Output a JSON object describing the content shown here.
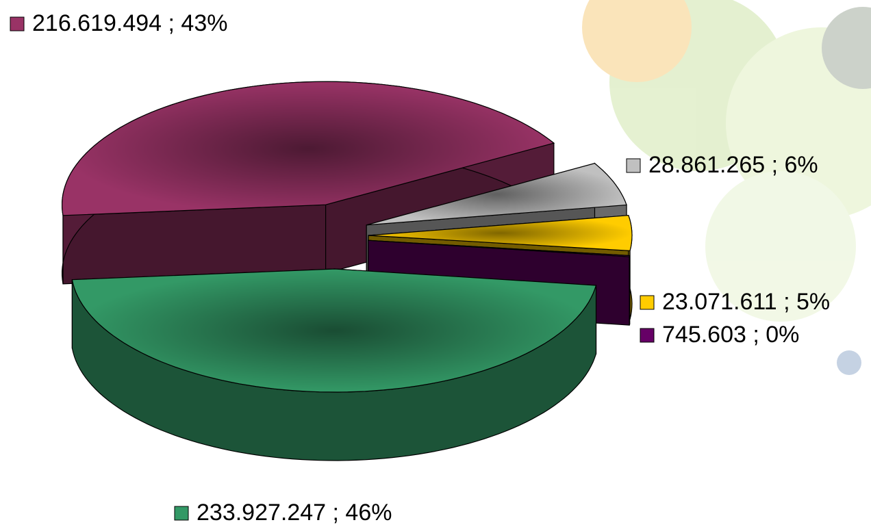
{
  "chart_data": {
    "type": "pie3d",
    "values": [
      216619494,
      28861265,
      23071611,
      745603,
      233927247
    ],
    "value_labels": [
      "216.619.494 ; 43%",
      "28.861.265 ; 6%",
      "23.071.611 ; 5%",
      "745.603 ; 0%",
      "233.927.247 ; 46%"
    ],
    "colors": [
      "#993366",
      "#c0c0c0",
      "#ffcc00",
      "#660066",
      "#339966"
    ]
  }
}
